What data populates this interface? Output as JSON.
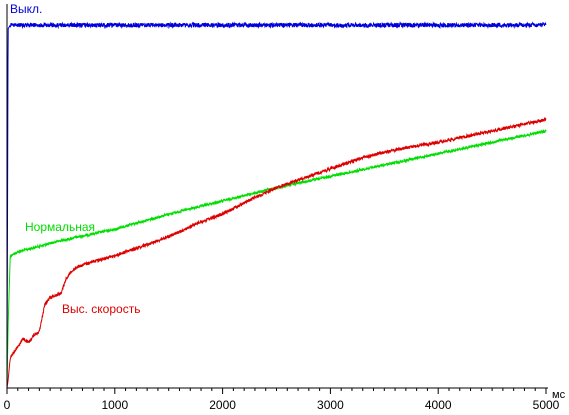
{
  "chart_data": {
    "type": "line",
    "x_unit": "мс",
    "xlim": [
      0,
      5000
    ],
    "ylim": [
      0,
      100
    ],
    "grid": false,
    "x_ticks": [
      0,
      1000,
      2000,
      3000,
      4000,
      5000
    ],
    "series": [
      {
        "name": "Выкл.",
        "color": "#0000dd",
        "x": [
          0,
          10,
          30,
          100,
          500,
          1000,
          1500,
          2000,
          2500,
          3000,
          3500,
          4000,
          4500,
          5000
        ],
        "y": [
          0,
          95,
          96,
          96,
          96,
          96,
          96,
          96,
          96,
          96,
          96,
          96,
          96,
          96
        ]
      },
      {
        "name": "Нормальная",
        "color": "#00dd00",
        "x": [
          0,
          10,
          30,
          100,
          500,
          1000,
          1500,
          2000,
          2500,
          3000,
          3500,
          4000,
          4500,
          5000
        ],
        "y": [
          0,
          16,
          35,
          36,
          39,
          42,
          46,
          49.5,
          53,
          56,
          59,
          62,
          65,
          68
        ]
      },
      {
        "name": "Выс. скорость",
        "color": "#dd0000",
        "x": [
          0,
          10,
          30,
          100,
          150,
          200,
          250,
          300,
          350,
          400,
          450,
          500,
          550,
          600,
          650,
          700,
          800,
          1000,
          1200,
          1500,
          1800,
          2000,
          2200,
          2500,
          2800,
          3000,
          3300,
          3600,
          4000,
          4500,
          5000
        ],
        "y": [
          0,
          2,
          8,
          11,
          13,
          12,
          14,
          15,
          22,
          24,
          24.5,
          25,
          29,
          31,
          32,
          32.5,
          33.5,
          35,
          37,
          40,
          44,
          46,
          49,
          53,
          56,
          58,
          61,
          63,
          65,
          68,
          71
        ]
      }
    ]
  }
}
